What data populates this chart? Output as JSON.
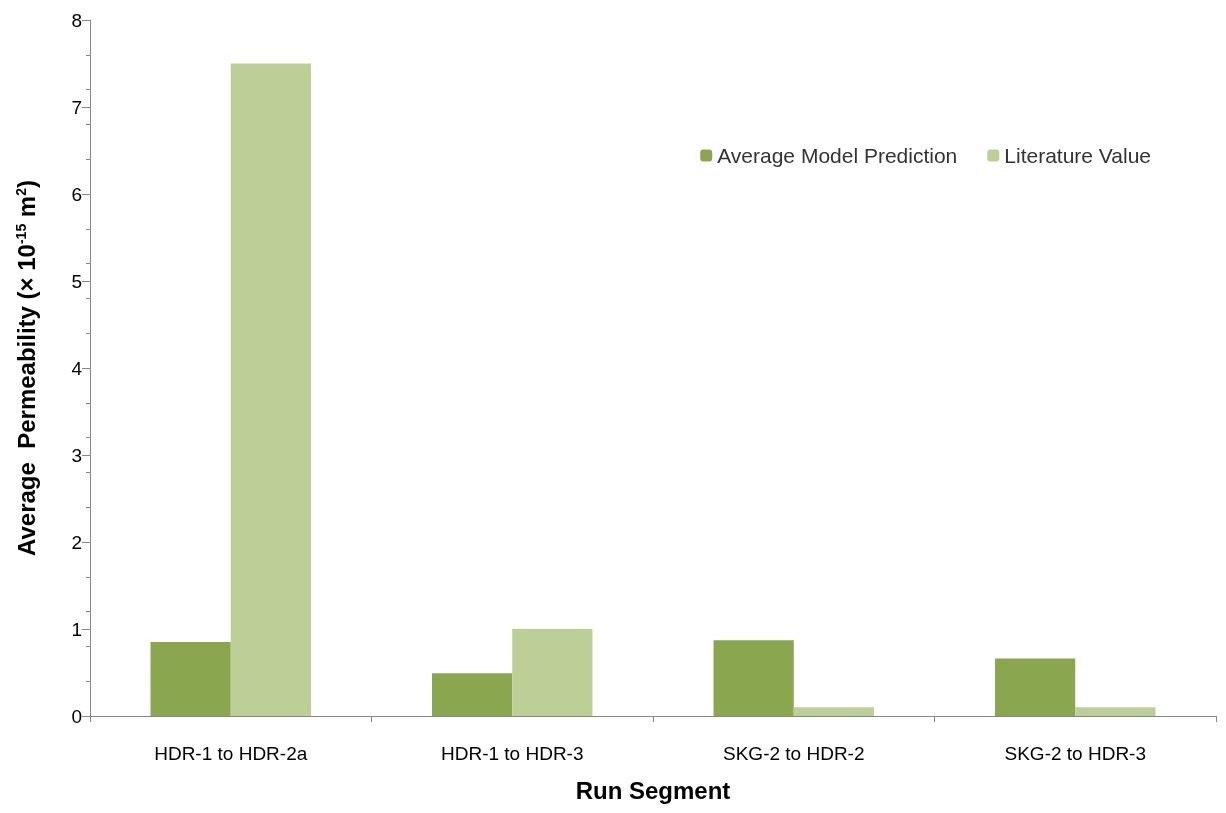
{
  "chart_data": {
    "type": "bar",
    "xlabel": "Run Segment",
    "ylabel": "Average  Permeability (× 10$^{-15}$ m$^{2}$)",
    "categories": [
      "HDR-1 to HDR-2a",
      "HDR-1 to HDR-3",
      "SKG-2 to HDR-2",
      "SKG-2 to HDR-3"
    ],
    "series": [
      {
        "name": "Average Model Prediction",
        "color": "#8aa64f",
        "values": [
          0.85,
          0.49,
          0.87,
          0.66
        ]
      },
      {
        "name": "Literature Value",
        "color": "#bccf97",
        "values": [
          7.5,
          1.0,
          0.1,
          0.1
        ]
      }
    ],
    "ylim": [
      0,
      8
    ],
    "yticks": [
      0,
      1,
      2,
      3,
      4,
      5,
      6,
      7,
      8
    ],
    "grid": false,
    "legend": "top right"
  }
}
